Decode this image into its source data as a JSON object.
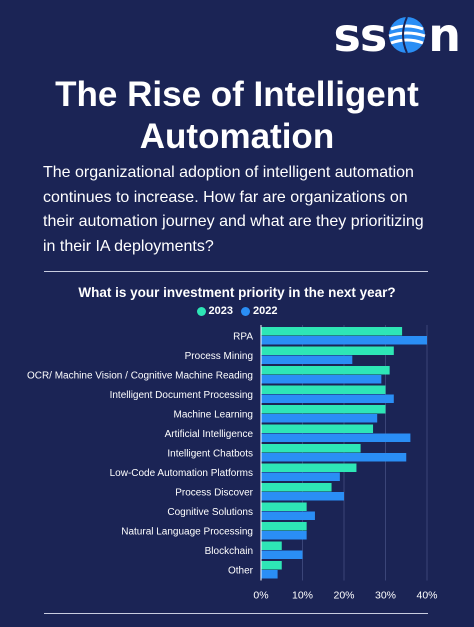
{
  "brand": {
    "logo_text_left": "ss",
    "logo_text_right": "n"
  },
  "title": "The Rise of Intelligent Automation",
  "intro": "The organizational adoption of intelligent automation continues to increase. How far are organizations on their automation journey and what are they prioritizing in their IA deployments?",
  "colors": {
    "background": "#1b2455",
    "series_2023": "#2ee6b6",
    "series_2022": "#2a8ef5",
    "text": "#ffffff",
    "grid": "#3b4578"
  },
  "chart_data": {
    "type": "bar",
    "orientation": "horizontal",
    "title": "What is your investment priority in the next year?",
    "categories": [
      "RPA",
      "Process Mining",
      "OCR/ Machine Vision / Cognitive Machine Reading",
      "Intelligent Document Processing",
      "Machine Learning",
      "Artificial Intelligence",
      "Intelligent Chatbots",
      "Low-Code Automation Platforms",
      "Process Discover",
      "Cognitive Solutions",
      "Natural Language Processing",
      "Blockchain",
      "Other"
    ],
    "series": [
      {
        "name": "2023",
        "color": "#2ee6b6",
        "values": [
          34,
          32,
          31,
          30,
          30,
          27,
          24,
          23,
          17,
          11,
          11,
          5,
          5
        ]
      },
      {
        "name": "2022",
        "color": "#2a8ef5",
        "values": [
          40,
          22,
          29,
          32,
          28,
          36,
          35,
          19,
          20,
          13,
          11,
          10,
          4
        ]
      }
    ],
    "xlim": [
      0,
      40
    ],
    "xticks": [
      "0%",
      "10%",
      "20%",
      "30%",
      "40%"
    ],
    "grid": true,
    "legend": "top-center"
  }
}
